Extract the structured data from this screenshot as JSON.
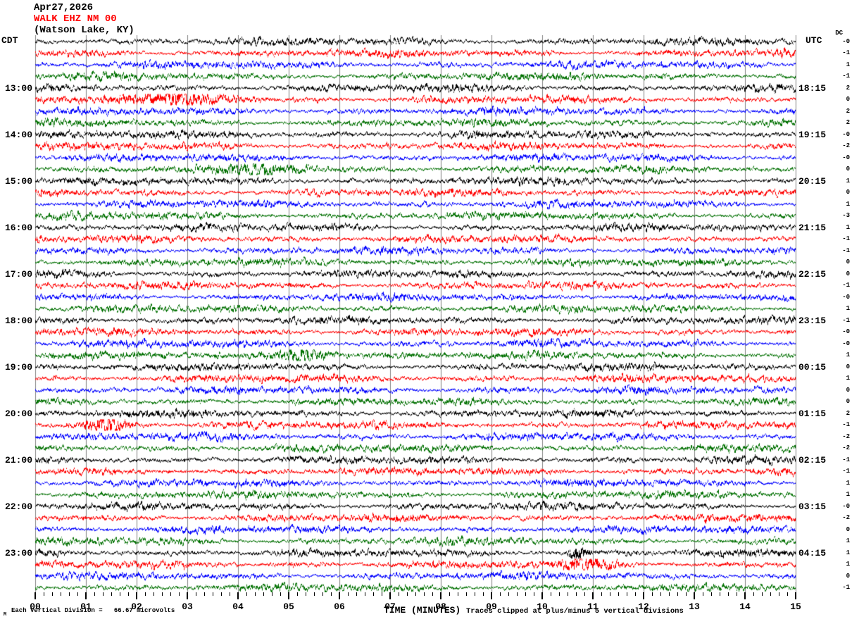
{
  "header": {
    "date": "Apr27,2026",
    "station": "WALK EHZ NM 00",
    "location": "(Watson Lake, KY)"
  },
  "axis_labels": {
    "left_tz": "CDT",
    "right_tz": "UTC",
    "dc": "DC",
    "x_title": "TIME (MINUTES)"
  },
  "footer": {
    "marker": "M",
    "scale_note": "Each Vertical Division =   66.67 microvolts",
    "clip_note": "Traces clipped at plus/minus 5 vertical divisions"
  },
  "chart_data": {
    "type": "line",
    "subtype": "helicorder-seismogram",
    "title": "WALK EHZ NM 00 (Watson Lake, KY) Apr27,2026",
    "xlabel": "TIME (MINUTES)",
    "x_axis": {
      "range_minutes": [
        0,
        15
      ],
      "tick_labels": [
        "00",
        "01",
        "02",
        "03",
        "04",
        "05",
        "06",
        "07",
        "08",
        "09",
        "10",
        "11",
        "12",
        "13",
        "14",
        "15"
      ],
      "minor_ticks_per_minute": 6
    },
    "grid_color": "#808080",
    "trace_color_cycle": [
      "#000000",
      "#ff0000",
      "#0000ff",
      "#007000"
    ],
    "minutes_per_trace": 15,
    "traces_per_hour": 4,
    "clip_divisions": 5,
    "rows": [
      {
        "color": "#000000",
        "dc": "-0"
      },
      {
        "color": "#ff0000",
        "dc": "-1"
      },
      {
        "color": "#0000ff",
        "dc": "1"
      },
      {
        "color": "#007000",
        "dc": "-1"
      },
      {
        "color": "#000000",
        "dc": "2"
      },
      {
        "color": "#ff0000",
        "dc": "0"
      },
      {
        "color": "#0000ff",
        "dc": "2"
      },
      {
        "color": "#007000",
        "dc": "2"
      },
      {
        "color": "#000000",
        "dc": "-0"
      },
      {
        "color": "#ff0000",
        "dc": "-2"
      },
      {
        "color": "#0000ff",
        "dc": "-0"
      },
      {
        "color": "#007000",
        "dc": "0"
      },
      {
        "color": "#000000",
        "dc": "1"
      },
      {
        "color": "#ff0000",
        "dc": "0"
      },
      {
        "color": "#0000ff",
        "dc": "1"
      },
      {
        "color": "#007000",
        "dc": "-3"
      },
      {
        "color": "#000000",
        "dc": "1"
      },
      {
        "color": "#ff0000",
        "dc": "-1"
      },
      {
        "color": "#0000ff",
        "dc": "-1"
      },
      {
        "color": "#007000",
        "dc": "0"
      },
      {
        "color": "#000000",
        "dc": "0"
      },
      {
        "color": "#ff0000",
        "dc": "-1"
      },
      {
        "color": "#0000ff",
        "dc": "-0"
      },
      {
        "color": "#007000",
        "dc": "1"
      },
      {
        "color": "#000000",
        "dc": "-1"
      },
      {
        "color": "#ff0000",
        "dc": "-0"
      },
      {
        "color": "#0000ff",
        "dc": "-0"
      },
      {
        "color": "#007000",
        "dc": "1"
      },
      {
        "color": "#000000",
        "dc": "0"
      },
      {
        "color": "#ff0000",
        "dc": "1"
      },
      {
        "color": "#0000ff",
        "dc": "0"
      },
      {
        "color": "#007000",
        "dc": "0"
      },
      {
        "color": "#000000",
        "dc": "2"
      },
      {
        "color": "#ff0000",
        "dc": "-1"
      },
      {
        "color": "#0000ff",
        "dc": "-2"
      },
      {
        "color": "#007000",
        "dc": "-2"
      },
      {
        "color": "#000000",
        "dc": "-1"
      },
      {
        "color": "#ff0000",
        "dc": "-1"
      },
      {
        "color": "#0000ff",
        "dc": "1"
      },
      {
        "color": "#007000",
        "dc": "1"
      },
      {
        "color": "#000000",
        "dc": "-0"
      },
      {
        "color": "#ff0000",
        "dc": "-2"
      },
      {
        "color": "#0000ff",
        "dc": "0"
      },
      {
        "color": "#007000",
        "dc": "1"
      },
      {
        "color": "#000000",
        "dc": "1"
      },
      {
        "color": "#ff0000",
        "dc": "1"
      },
      {
        "color": "#0000ff",
        "dc": "0"
      },
      {
        "color": "#007000",
        "dc": "-1"
      }
    ],
    "hour_labels": [
      {
        "row": 5,
        "cdt": "13:00",
        "utc": "18:15"
      },
      {
        "row": 9,
        "cdt": "14:00",
        "utc": "19:15"
      },
      {
        "row": 13,
        "cdt": "15:00",
        "utc": "20:15"
      },
      {
        "row": 17,
        "cdt": "16:00",
        "utc": "21:15"
      },
      {
        "row": 21,
        "cdt": "17:00",
        "utc": "22:15"
      },
      {
        "row": 25,
        "cdt": "18:00",
        "utc": "23:15"
      },
      {
        "row": 29,
        "cdt": "19:00",
        "utc": "00:15"
      },
      {
        "row": 33,
        "cdt": "20:00",
        "utc": "01:15"
      },
      {
        "row": 37,
        "cdt": "21:00",
        "utc": "02:15"
      },
      {
        "row": 41,
        "cdt": "22:00",
        "utc": "03:15"
      },
      {
        "row": 45,
        "cdt": "23:00",
        "utc": "04:15"
      }
    ],
    "events": [
      {
        "row": 6,
        "minute": 3.0,
        "gain": 1.3,
        "width_minutes": 0.7
      },
      {
        "row": 12,
        "minute": 4.6,
        "gain": 1.2,
        "width_minutes": 0.5
      },
      {
        "row": 28,
        "minute": 5.3,
        "gain": 1.8,
        "width_minutes": 0.4
      },
      {
        "row": 34,
        "minute": 1.4,
        "gain": 2.6,
        "width_minutes": 0.3
      },
      {
        "row": 45,
        "minute": 10.7,
        "gain": 2.4,
        "width_minutes": 0.12
      },
      {
        "row": 46,
        "minute": 10.9,
        "gain": 1.3,
        "width_minutes": 0.4
      }
    ],
    "note": "Continuous background seismic noise traces; 48 rows of 15 minutes each."
  }
}
